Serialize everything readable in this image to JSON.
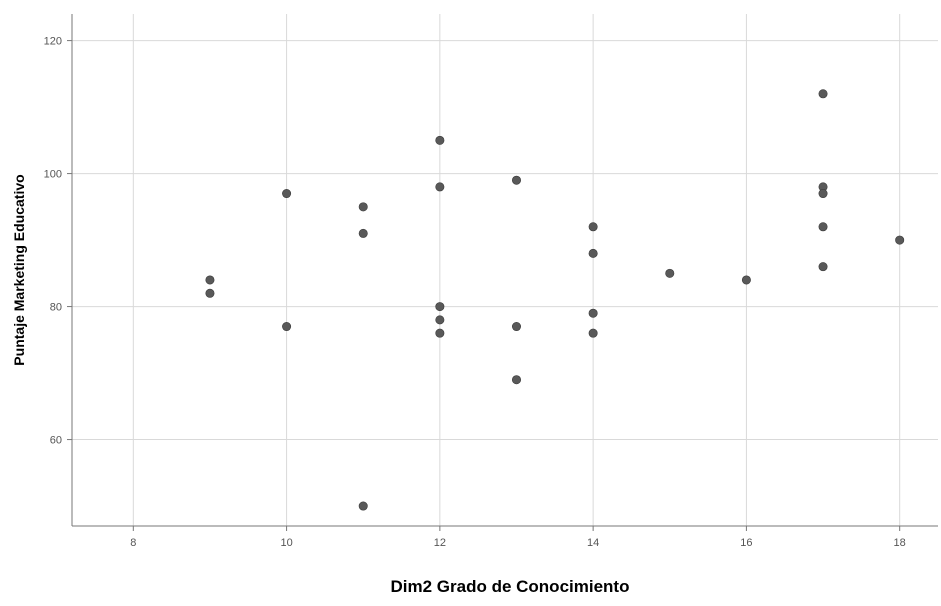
{
  "chart_data": {
    "type": "scatter",
    "xlabel": "Dim2 Grado de Conocimiento",
    "ylabel": "Puntaje Marketing Educativo",
    "xlim": [
      7.2,
      18.5
    ],
    "ylim": [
      47,
      124
    ],
    "xticks": [
      8,
      10,
      12,
      14,
      16,
      18
    ],
    "yticks": [
      60,
      80,
      100,
      120
    ],
    "grid": true,
    "marker_color": "#595959",
    "points": [
      {
        "x": 9,
        "y": 84
      },
      {
        "x": 9,
        "y": 82
      },
      {
        "x": 10,
        "y": 97
      },
      {
        "x": 10,
        "y": 77
      },
      {
        "x": 11,
        "y": 95
      },
      {
        "x": 11,
        "y": 91
      },
      {
        "x": 11,
        "y": 50
      },
      {
        "x": 12,
        "y": 105
      },
      {
        "x": 12,
        "y": 98
      },
      {
        "x": 12,
        "y": 80
      },
      {
        "x": 12,
        "y": 78
      },
      {
        "x": 12,
        "y": 76
      },
      {
        "x": 13,
        "y": 99
      },
      {
        "x": 13,
        "y": 77
      },
      {
        "x": 13,
        "y": 69
      },
      {
        "x": 14,
        "y": 92
      },
      {
        "x": 14,
        "y": 88
      },
      {
        "x": 14,
        "y": 79
      },
      {
        "x": 14,
        "y": 76
      },
      {
        "x": 15,
        "y": 85
      },
      {
        "x": 16,
        "y": 84
      },
      {
        "x": 17,
        "y": 112
      },
      {
        "x": 17,
        "y": 98
      },
      {
        "x": 17,
        "y": 97
      },
      {
        "x": 17,
        "y": 92
      },
      {
        "x": 17,
        "y": 86
      },
      {
        "x": 18,
        "y": 90
      }
    ]
  }
}
